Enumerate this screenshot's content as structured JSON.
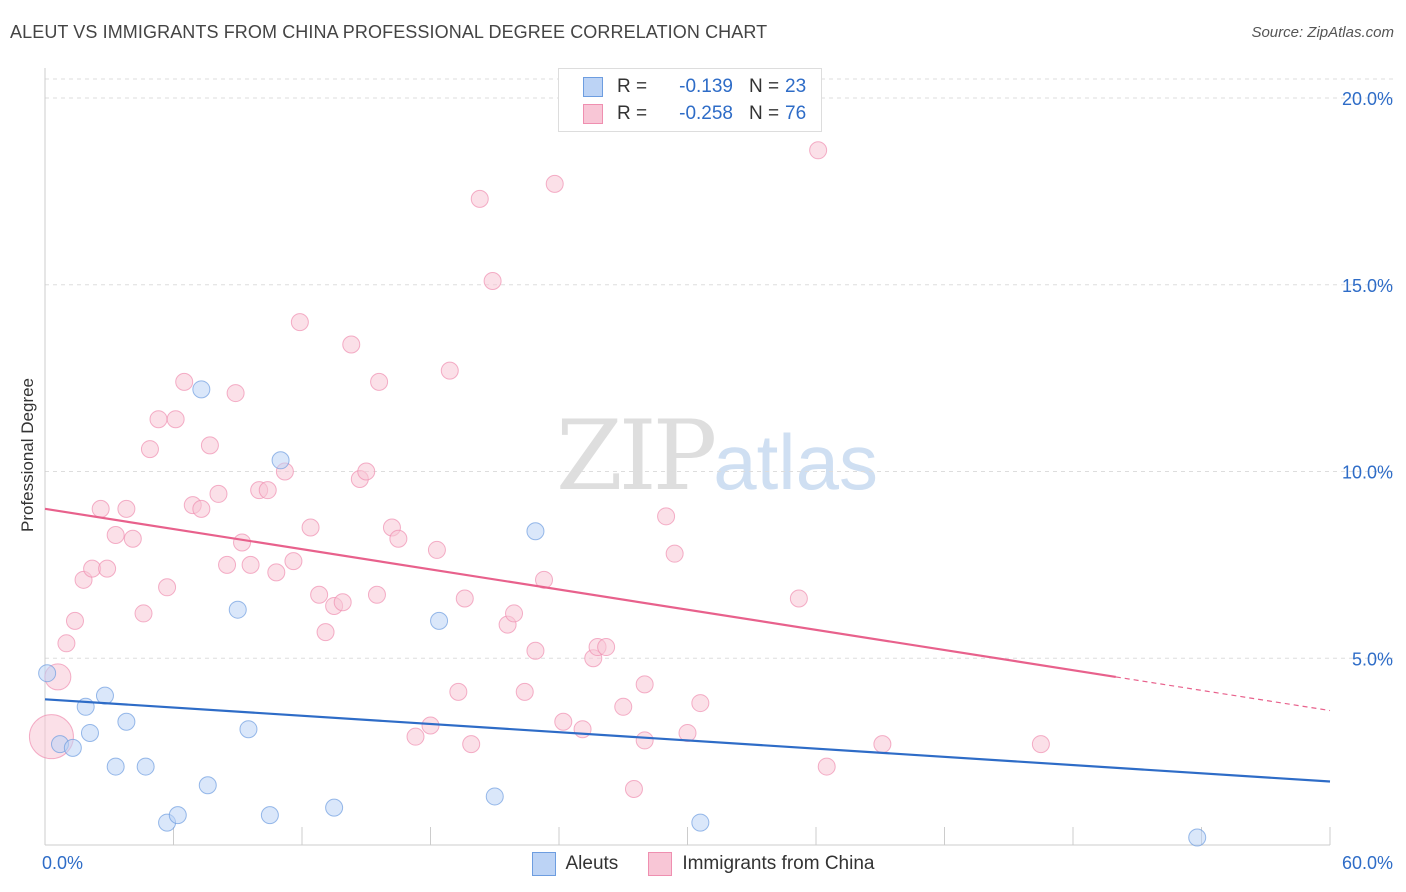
{
  "title": "ALEUT VS IMMIGRANTS FROM CHINA PROFESSIONAL DEGREE CORRELATION CHART",
  "source": "Source: ZipAtlas.com",
  "watermark": {
    "zip": "ZIP",
    "atlas": "atlas"
  },
  "legend": {
    "rows": [
      {
        "r_label": "R =",
        "r_value": "-0.139",
        "n_label": "N =",
        "n_value": "23"
      },
      {
        "r_label": "R =",
        "r_value": "-0.258",
        "n_label": "N =",
        "n_value": "76"
      }
    ]
  },
  "bottom_legend": {
    "aleuts": "Aleuts",
    "china": "Immigrants from China"
  },
  "chart_data": {
    "type": "scatter",
    "title": "ALEUT VS IMMIGRANTS FROM CHINA PROFESSIONAL DEGREE CORRELATION CHART",
    "xlabel": "",
    "ylabel": "Professional Degree",
    "xlim": [
      0,
      60
    ],
    "ylim": [
      0,
      20
    ],
    "x_tick_labels": [
      "0.0%",
      "60.0%"
    ],
    "y_ticks": [
      5,
      10,
      15,
      20
    ],
    "y_tick_labels": [
      "5.0%",
      "10.0%",
      "15.0%",
      "20.0%"
    ],
    "grid": true,
    "colors": {
      "aleuts": "#6d9de0",
      "aleuts_fill": "#bcd3f5",
      "aleuts_line": "#2e6cc7",
      "china": "#ef8fb0",
      "china_fill": "#f8c6d6",
      "china_line": "#e8618c",
      "tick_text": "#2e6cc7"
    },
    "series": [
      {
        "name": "Aleuts",
        "r": -0.139,
        "n": 23,
        "trend": {
          "x0": 0,
          "y0": 3.9,
          "x1": 60,
          "y1": 1.7
        },
        "points": [
          {
            "x": 0.1,
            "y": 4.6
          },
          {
            "x": 0.7,
            "y": 2.7
          },
          {
            "x": 1.3,
            "y": 2.6
          },
          {
            "x": 1.9,
            "y": 3.7
          },
          {
            "x": 2.1,
            "y": 3.0
          },
          {
            "x": 2.8,
            "y": 4.0
          },
          {
            "x": 3.3,
            "y": 2.1
          },
          {
            "x": 3.8,
            "y": 3.3
          },
          {
            "x": 4.7,
            "y": 2.1
          },
          {
            "x": 5.7,
            "y": 0.6
          },
          {
            "x": 6.2,
            "y": 0.8
          },
          {
            "x": 7.3,
            "y": 12.2
          },
          {
            "x": 7.6,
            "y": 1.6
          },
          {
            "x": 9.0,
            "y": 6.3
          },
          {
            "x": 9.5,
            "y": 3.1
          },
          {
            "x": 10.5,
            "y": 0.8
          },
          {
            "x": 11.0,
            "y": 10.3
          },
          {
            "x": 13.5,
            "y": 1.0
          },
          {
            "x": 18.4,
            "y": 6.0
          },
          {
            "x": 21.0,
            "y": 1.3
          },
          {
            "x": 22.9,
            "y": 8.4
          },
          {
            "x": 30.6,
            "y": 0.6
          },
          {
            "x": 53.8,
            "y": 0.2
          }
        ]
      },
      {
        "name": "Immigrants from China",
        "r": -0.258,
        "n": 76,
        "trend": {
          "x0": 0,
          "y0": 9.0,
          "x1": 50,
          "y1": 4.5,
          "x2": 60,
          "y2": 3.6
        },
        "points": [
          {
            "x": 0.3,
            "y": 2.9,
            "big": 2
          },
          {
            "x": 0.6,
            "y": 4.5,
            "big": 1
          },
          {
            "x": 1.0,
            "y": 5.4
          },
          {
            "x": 1.4,
            "y": 6.0
          },
          {
            "x": 1.8,
            "y": 7.1
          },
          {
            "x": 2.2,
            "y": 7.4
          },
          {
            "x": 2.6,
            "y": 9.0
          },
          {
            "x": 2.9,
            "y": 7.4
          },
          {
            "x": 3.3,
            "y": 8.3
          },
          {
            "x": 3.8,
            "y": 9.0
          },
          {
            "x": 4.1,
            "y": 8.2
          },
          {
            "x": 4.6,
            "y": 6.2
          },
          {
            "x": 4.9,
            "y": 10.6
          },
          {
            "x": 5.3,
            "y": 11.4
          },
          {
            "x": 5.7,
            "y": 6.9
          },
          {
            "x": 6.1,
            "y": 11.4
          },
          {
            "x": 6.5,
            "y": 12.4
          },
          {
            "x": 6.9,
            "y": 9.1
          },
          {
            "x": 7.3,
            "y": 9.0
          },
          {
            "x": 7.7,
            "y": 10.7
          },
          {
            "x": 8.1,
            "y": 9.4
          },
          {
            "x": 8.5,
            "y": 7.5
          },
          {
            "x": 8.9,
            "y": 12.1
          },
          {
            "x": 9.2,
            "y": 8.1
          },
          {
            "x": 9.6,
            "y": 7.5
          },
          {
            "x": 10.0,
            "y": 9.5
          },
          {
            "x": 10.4,
            "y": 9.5
          },
          {
            "x": 10.8,
            "y": 7.3
          },
          {
            "x": 11.2,
            "y": 10.0
          },
          {
            "x": 11.6,
            "y": 7.6
          },
          {
            "x": 11.9,
            "y": 14.0
          },
          {
            "x": 12.4,
            "y": 8.5
          },
          {
            "x": 12.8,
            "y": 6.7
          },
          {
            "x": 13.1,
            "y": 5.7
          },
          {
            "x": 13.5,
            "y": 6.4
          },
          {
            "x": 13.9,
            "y": 6.5
          },
          {
            "x": 14.3,
            "y": 13.4
          },
          {
            "x": 14.7,
            "y": 9.8
          },
          {
            "x": 15.0,
            "y": 10.0
          },
          {
            "x": 15.5,
            "y": 6.7
          },
          {
            "x": 15.6,
            "y": 12.4
          },
          {
            "x": 16.2,
            "y": 8.5
          },
          {
            "x": 16.5,
            "y": 8.2
          },
          {
            "x": 17.3,
            "y": 2.9
          },
          {
            "x": 18.0,
            "y": 3.2
          },
          {
            "x": 18.3,
            "y": 7.9
          },
          {
            "x": 18.9,
            "y": 12.7
          },
          {
            "x": 19.3,
            "y": 4.1
          },
          {
            "x": 19.6,
            "y": 6.6
          },
          {
            "x": 19.9,
            "y": 2.7
          },
          {
            "x": 20.3,
            "y": 17.3
          },
          {
            "x": 20.9,
            "y": 15.1
          },
          {
            "x": 21.6,
            "y": 5.9
          },
          {
            "x": 21.9,
            "y": 6.2
          },
          {
            "x": 22.4,
            "y": 4.1
          },
          {
            "x": 22.9,
            "y": 5.2
          },
          {
            "x": 23.3,
            "y": 7.1
          },
          {
            "x": 23.8,
            "y": 17.7
          },
          {
            "x": 24.2,
            "y": 3.3
          },
          {
            "x": 25.1,
            "y": 3.1
          },
          {
            "x": 25.6,
            "y": 5.0
          },
          {
            "x": 25.8,
            "y": 5.3
          },
          {
            "x": 26.2,
            "y": 5.3
          },
          {
            "x": 27.0,
            "y": 3.7
          },
          {
            "x": 27.5,
            "y": 1.5
          },
          {
            "x": 28.0,
            "y": 2.8
          },
          {
            "x": 28.0,
            "y": 4.3
          },
          {
            "x": 29.0,
            "y": 8.8
          },
          {
            "x": 29.4,
            "y": 7.8
          },
          {
            "x": 30.0,
            "y": 3.0
          },
          {
            "x": 30.6,
            "y": 3.8
          },
          {
            "x": 35.2,
            "y": 6.6
          },
          {
            "x": 36.1,
            "y": 18.6
          },
          {
            "x": 36.5,
            "y": 2.1
          },
          {
            "x": 39.1,
            "y": 2.7
          },
          {
            "x": 46.5,
            "y": 2.7
          }
        ]
      }
    ]
  }
}
